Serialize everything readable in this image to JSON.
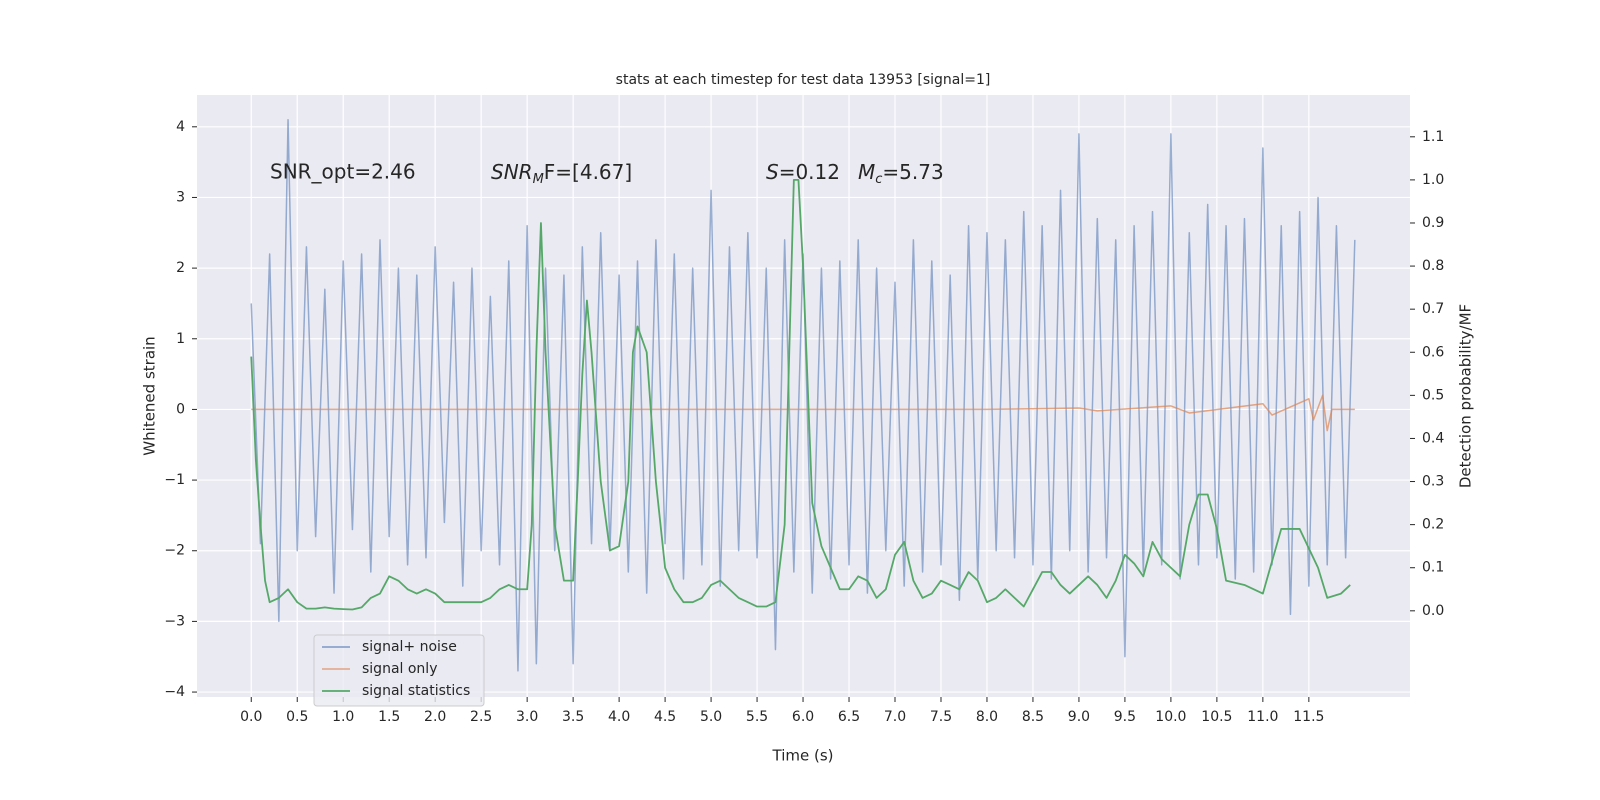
{
  "chart_data": {
    "type": "line",
    "title": "stats at each timestep for test data 13953 [signal=1]",
    "xlabel": "Time (s)",
    "ylabel": "Whitened strain",
    "y2label": "Detection probability/MF",
    "annotations": {
      "snr_opt": "SNR_opt=2.46",
      "snr_mf": {
        "base": "SNR",
        "sub": "M",
        "rest": "F=[4.67]"
      },
      "s": {
        "base": "S",
        "rest": "=0.12"
      },
      "mc": {
        "base": "M",
        "sub": "c",
        "rest": "=5.73"
      }
    },
    "grid": true,
    "legend": "lower left",
    "xlim": [
      -0.59,
      12.6
    ],
    "ylim": [
      -4.07,
      4.45
    ],
    "y2lim": [
      -0.2,
      1.197
    ],
    "xticks": [
      {
        "value": 0,
        "label": "0.0"
      },
      0.5,
      {
        "value": 1,
        "label": "1.0"
      },
      1.5,
      {
        "value": 2,
        "label": "2.0"
      },
      2.5,
      {
        "value": 3,
        "label": "3.0"
      },
      3.5,
      {
        "value": 4,
        "label": "4.0"
      },
      4.5,
      {
        "value": 5,
        "label": "5.0"
      },
      5.5,
      {
        "value": 6,
        "label": "6.0"
      },
      6.5,
      {
        "value": 7,
        "label": "7.0"
      },
      7.5,
      {
        "value": 8,
        "label": "8.0"
      },
      8.5,
      {
        "value": 9,
        "label": "9.0"
      },
      9.5,
      {
        "value": 10,
        "label": "10.0"
      },
      10.5,
      {
        "value": 11,
        "label": "11.0"
      },
      11.5
    ],
    "yticks": [
      {
        "value": -4,
        "label": "−4"
      },
      {
        "value": -3,
        "label": "−3"
      },
      {
        "value": -2,
        "label": "−2"
      },
      {
        "value": -1,
        "label": "−1"
      },
      0,
      1,
      2,
      3,
      4
    ],
    "y2ticks": [
      {
        "value": 0,
        "label": "0.0"
      },
      0.1,
      0.2,
      0.3,
      0.4,
      0.5,
      0.6,
      0.7,
      0.8,
      0.9,
      {
        "value": 1,
        "label": "1.0"
      },
      1.1
    ],
    "series": [
      {
        "name": "signal+ noise",
        "color": "#4c72b0",
        "x": [
          0,
          0.1,
          0.2,
          0.3,
          0.4,
          0.5,
          0.6,
          0.7,
          0.8,
          0.9,
          1.0,
          1.1,
          1.2,
          1.3,
          1.4,
          1.5,
          1.6,
          1.7,
          1.8,
          1.9,
          2.0,
          2.1,
          2.2,
          2.3,
          2.4,
          2.5,
          2.6,
          2.7,
          2.8,
          2.9,
          3.0,
          3.1,
          3.2,
          3.3,
          3.4,
          3.5,
          3.6,
          3.7,
          3.8,
          3.9,
          4.0,
          4.1,
          4.2,
          4.3,
          4.4,
          4.5,
          4.6,
          4.7,
          4.8,
          4.9,
          5.0,
          5.1,
          5.2,
          5.3,
          5.4,
          5.5,
          5.6,
          5.7,
          5.8,
          5.9,
          6.0,
          6.1,
          6.2,
          6.3,
          6.4,
          6.5,
          6.6,
          6.7,
          6.8,
          6.9,
          7.0,
          7.1,
          7.2,
          7.3,
          7.4,
          7.5,
          7.6,
          7.7,
          7.8,
          7.9,
          8.0,
          8.1,
          8.2,
          8.3,
          8.4,
          8.5,
          8.6,
          8.7,
          8.8,
          8.9,
          9.0,
          9.1,
          9.2,
          9.3,
          9.4,
          9.5,
          9.6,
          9.7,
          9.8,
          9.9,
          10.0,
          10.1,
          10.2,
          10.3,
          10.4,
          10.5,
          10.6,
          10.7,
          10.8,
          10.9,
          11.0,
          11.1,
          11.2,
          11.3,
          11.4,
          11.5,
          11.6,
          11.7,
          11.8,
          11.9,
          12.0
        ],
        "values": [
          1.5,
          -1.9,
          2.2,
          -3.0,
          4.1,
          -2.0,
          2.3,
          -1.8,
          1.7,
          -2.6,
          2.1,
          -1.7,
          2.2,
          -2.3,
          2.4,
          -1.8,
          2.0,
          -2.2,
          1.9,
          -2.1,
          2.3,
          -1.6,
          1.8,
          -2.5,
          2.0,
          -2.0,
          1.6,
          -2.2,
          2.1,
          -3.7,
          2.6,
          -3.6,
          2.0,
          -2.0,
          1.9,
          -3.6,
          2.3,
          -1.9,
          2.5,
          -2.0,
          1.9,
          -2.3,
          2.1,
          -2.6,
          2.4,
          -1.9,
          2.2,
          -2.4,
          2.0,
          -2.2,
          3.1,
          -2.5,
          2.3,
          -2.0,
          2.5,
          -2.1,
          2.0,
          -3.4,
          2.4,
          -2.3,
          2.2,
          -2.6,
          2.0,
          -2.4,
          2.1,
          -2.2,
          2.4,
          -2.6,
          2.0,
          -2.0,
          1.8,
          -2.5,
          2.4,
          -2.3,
          2.1,
          -2.2,
          1.9,
          -2.7,
          2.6,
          -2.4,
          2.5,
          -2.0,
          2.4,
          -2.1,
          2.8,
          -2.2,
          2.6,
          -2.4,
          3.1,
          -2.0,
          3.9,
          -2.3,
          2.7,
          -2.1,
          2.4,
          -3.5,
          2.6,
          -2.3,
          2.8,
          -2.2,
          3.9,
          -2.4,
          2.5,
          -2.2,
          2.9,
          -2.1,
          2.6,
          -2.4,
          2.7,
          -2.3,
          3.7,
          -2.2,
          2.6,
          -2.9,
          2.8,
          -2.5,
          3.0,
          -2.2,
          2.6,
          -2.1,
          2.4
        ]
      },
      {
        "name": "signal only",
        "color": "#dd8452",
        "x": [
          0,
          8,
          9,
          9.2,
          10,
          10.2,
          11,
          11.1,
          11.5,
          11.55,
          11.65,
          11.7,
          11.75,
          12
        ],
        "values": [
          0,
          0,
          0.02,
          -0.02,
          0.05,
          -0.05,
          0.08,
          -0.08,
          0.15,
          -0.15,
          0.2,
          -0.3,
          0,
          0
        ]
      },
      {
        "name": "signal statistics",
        "color": "#55a868",
        "axis": "y2",
        "x": [
          0,
          0.05,
          0.1,
          0.15,
          0.2,
          0.3,
          0.4,
          0.5,
          0.6,
          0.7,
          0.8,
          0.9,
          1.0,
          1.1,
          1.2,
          1.3,
          1.4,
          1.5,
          1.6,
          1.7,
          1.8,
          1.9,
          2.0,
          2.1,
          2.2,
          2.3,
          2.4,
          2.5,
          2.6,
          2.7,
          2.8,
          2.9,
          3.0,
          3.05,
          3.1,
          3.15,
          3.2,
          3.3,
          3.4,
          3.5,
          3.55,
          3.6,
          3.65,
          3.7,
          3.8,
          3.9,
          4.0,
          4.1,
          4.15,
          4.2,
          4.3,
          4.4,
          4.5,
          4.6,
          4.7,
          4.8,
          4.9,
          5.0,
          5.1,
          5.2,
          5.3,
          5.4,
          5.5,
          5.6,
          5.7,
          5.8,
          5.85,
          5.9,
          5.95,
          6.0,
          6.1,
          6.2,
          6.3,
          6.4,
          6.5,
          6.6,
          6.7,
          6.8,
          6.9,
          7.0,
          7.1,
          7.2,
          7.3,
          7.4,
          7.5,
          7.6,
          7.7,
          7.8,
          7.9,
          8.0,
          8.1,
          8.2,
          8.3,
          8.4,
          8.5,
          8.6,
          8.7,
          8.8,
          8.9,
          9.0,
          9.1,
          9.2,
          9.3,
          9.4,
          9.5,
          9.6,
          9.7,
          9.8,
          9.9,
          10.0,
          10.1,
          10.2,
          10.3,
          10.4,
          10.5,
          10.6,
          10.8,
          11.0,
          11.2,
          11.4,
          11.6,
          11.7,
          11.85,
          11.95
        ],
        "values": [
          0.59,
          0.35,
          0.2,
          0.07,
          0.02,
          0.03,
          0.05,
          0.02,
          0.005,
          0.005,
          0.008,
          0.005,
          0.004,
          0.003,
          0.008,
          0.03,
          0.04,
          0.08,
          0.07,
          0.05,
          0.04,
          0.05,
          0.04,
          0.02,
          0.02,
          0.02,
          0.02,
          0.02,
          0.03,
          0.05,
          0.06,
          0.05,
          0.05,
          0.2,
          0.6,
          0.9,
          0.6,
          0.2,
          0.07,
          0.07,
          0.3,
          0.55,
          0.72,
          0.6,
          0.3,
          0.14,
          0.15,
          0.3,
          0.6,
          0.66,
          0.6,
          0.3,
          0.1,
          0.05,
          0.02,
          0.02,
          0.03,
          0.06,
          0.07,
          0.05,
          0.03,
          0.02,
          0.01,
          0.01,
          0.02,
          0.2,
          0.6,
          1.0,
          1.0,
          0.8,
          0.25,
          0.15,
          0.1,
          0.05,
          0.05,
          0.08,
          0.07,
          0.03,
          0.05,
          0.13,
          0.16,
          0.07,
          0.03,
          0.04,
          0.07,
          0.06,
          0.05,
          0.09,
          0.07,
          0.02,
          0.03,
          0.05,
          0.03,
          0.01,
          0.05,
          0.09,
          0.09,
          0.06,
          0.04,
          0.06,
          0.08,
          0.06,
          0.03,
          0.07,
          0.13,
          0.11,
          0.08,
          0.16,
          0.12,
          0.1,
          0.08,
          0.2,
          0.27,
          0.27,
          0.19,
          0.07,
          0.06,
          0.04,
          0.19,
          0.19,
          0.1,
          0.03,
          0.04,
          0.06
        ]
      }
    ]
  }
}
